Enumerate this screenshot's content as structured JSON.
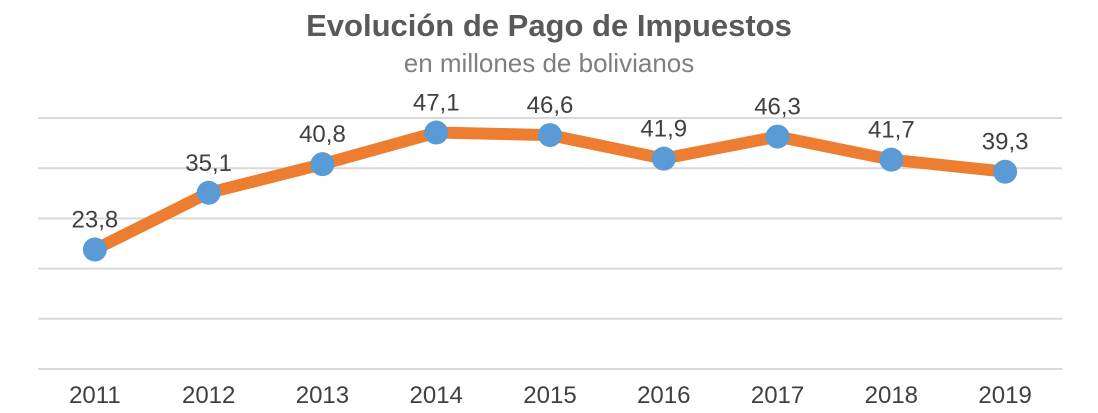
{
  "chart_data": {
    "type": "line",
    "title": "Evolución de Pago de Impuestos",
    "subtitle": "en millones de bolivianos",
    "categories": [
      "2011",
      "2012",
      "2013",
      "2014",
      "2015",
      "2016",
      "2017",
      "2018",
      "2019"
    ],
    "values": [
      23.8,
      35.1,
      40.8,
      47.1,
      46.6,
      41.9,
      46.3,
      41.7,
      39.3
    ],
    "data_labels": [
      "23,8",
      "35,1",
      "40,8",
      "47,1",
      "46,6",
      "41,9",
      "46,3",
      "41,7",
      "39,3"
    ],
    "ylim": [
      0,
      50
    ],
    "y_major_step": 10,
    "grid": true,
    "y_axis_labels_shown": false,
    "colors": {
      "line": "#ed7d31",
      "marker": "#5b9bd5",
      "grid": "#d9d9d9",
      "text": "#404040"
    }
  }
}
